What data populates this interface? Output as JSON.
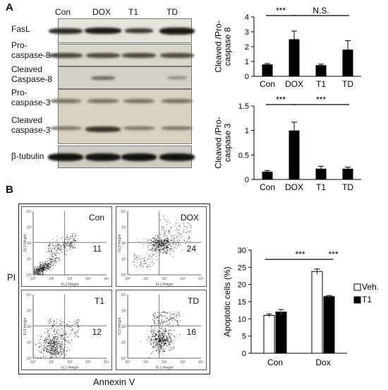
{
  "panelA": {
    "label": "A",
    "lanes": [
      "Con",
      "DOX",
      "T1",
      "TD"
    ],
    "blots": [
      {
        "label": "FasL"
      },
      {
        "label": "Pro-\ncaspase-8"
      },
      {
        "label": "Cleaved\nCaspase-8"
      },
      {
        "label": "Pro-\ncaspase-3"
      },
      {
        "label": "Cleaved\ncaspase-3"
      },
      {
        "label": "β-tubulin"
      }
    ]
  },
  "panelB": {
    "label": "B",
    "y_axis_label": "PI",
    "x_axis_label": "Annexin V",
    "flow_plots": [
      {
        "name": "Con",
        "value": "11"
      },
      {
        "name": "DOX",
        "value": "24"
      },
      {
        "name": "T1",
        "value": "12"
      },
      {
        "name": "TD",
        "value": "16"
      }
    ],
    "flow_axis_x": "FL1-Height",
    "flow_axis_y": "FL3-Height",
    "flow_ticks": [
      "10⁰",
      "10¹",
      "10²",
      "10³",
      "10⁴"
    ]
  },
  "chart_data": [
    {
      "type": "bar",
      "categories": [
        "Con",
        "DOX",
        "T1",
        "TD"
      ],
      "values": [
        0.8,
        2.5,
        0.75,
        1.8
      ],
      "errors": [
        0.06,
        0.55,
        0.07,
        0.6
      ],
      "ylabel": "Cleaved /Pro-\ncaspase 8",
      "ylim": [
        0,
        4
      ],
      "yticks": [
        "0",
        "1",
        "2",
        "3",
        "4"
      ],
      "annotations": [
        {
          "text": "***",
          "from": "Con",
          "to": "DOX"
        },
        {
          "text": "N.S.",
          "from": "DOX",
          "to": "TD"
        }
      ]
    },
    {
      "type": "bar",
      "categories": [
        "Con",
        "DOX",
        "T1",
        "TD"
      ],
      "values": [
        0.16,
        1.0,
        0.22,
        0.22
      ],
      "errors": [
        0.02,
        0.17,
        0.05,
        0.03
      ],
      "ylabel": "Cleaved /Pro-\ncaspase 3",
      "ylim": [
        0,
        1.5
      ],
      "yticks": [
        "0",
        "0.5",
        "1",
        "1.5"
      ],
      "annotations": [
        {
          "text": "***",
          "from": "Con",
          "to": "DOX"
        },
        {
          "text": "***",
          "from": "DOX",
          "to": "TD"
        }
      ]
    },
    {
      "type": "bar",
      "categories": [
        "Con",
        "Dox"
      ],
      "series": [
        {
          "name": "Veh.",
          "values": [
            11.0,
            23.8
          ],
          "errors": [
            0.4,
            0.7
          ],
          "color": "#ffffff"
        },
        {
          "name": "T1",
          "values": [
            12.0,
            16.5
          ],
          "errors": [
            0.7,
            0.3
          ],
          "color": "#000000"
        }
      ],
      "ylabel": "Apoptotic cells (%)",
      "ylim": [
        0,
        30
      ],
      "yticks": [
        "0",
        "5",
        "10",
        "15",
        "20",
        "25",
        "30"
      ],
      "legend": "right",
      "annotations": [
        {
          "text": "***",
          "from": "Con:Veh.",
          "to": "Dox:Veh."
        },
        {
          "text": "***",
          "from": "Dox:Veh.",
          "to": "Dox:T1"
        }
      ]
    }
  ]
}
